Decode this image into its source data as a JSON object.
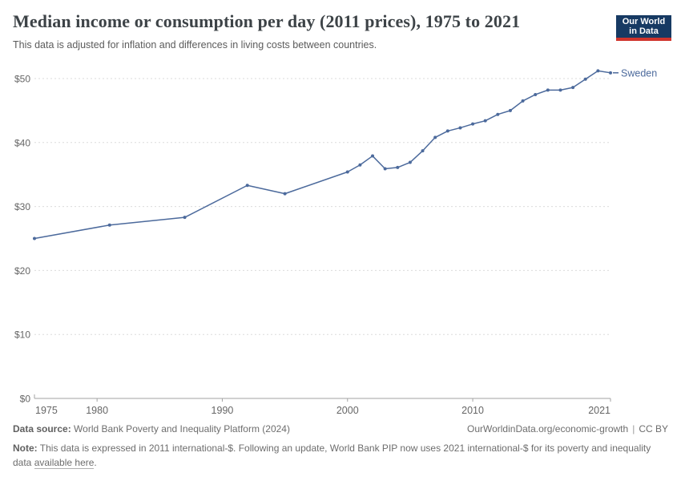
{
  "header": {
    "title": "Median income or consumption per day (2011 prices), 1975 to 2021",
    "subtitle": "This data is adjusted for inflation and differences in living costs between countries.",
    "logo": {
      "line1": "Our World",
      "line2": "in Data"
    }
  },
  "chart_data": {
    "type": "line",
    "title": "Median income or consumption per day (2011 prices), 1975 to 2021",
    "xlabel": "",
    "ylabel": "",
    "x_range": [
      1975,
      2021
    ],
    "y_range": [
      0,
      50
    ],
    "x_ticks": [
      1975,
      1980,
      1990,
      2000,
      2010,
      2021
    ],
    "y_ticks": [
      0,
      10,
      20,
      30,
      40,
      50
    ],
    "y_tick_prefix": "$",
    "grid": true,
    "legend_position": "end-of-line",
    "series": [
      {
        "name": "Sweden",
        "color": "#4C6A9C",
        "points": [
          [
            1975,
            25.0
          ],
          [
            1981,
            27.1
          ],
          [
            1987,
            28.3
          ],
          [
            1992,
            33.3
          ],
          [
            1995,
            32.0
          ],
          [
            2000,
            35.4
          ],
          [
            2001,
            36.5
          ],
          [
            2002,
            37.9
          ],
          [
            2003,
            35.9
          ],
          [
            2004,
            36.1
          ],
          [
            2005,
            36.9
          ],
          [
            2006,
            38.7
          ],
          [
            2007,
            40.8
          ],
          [
            2008,
            41.8
          ],
          [
            2009,
            42.3
          ],
          [
            2010,
            42.9
          ],
          [
            2011,
            43.4
          ],
          [
            2012,
            44.4
          ],
          [
            2013,
            45.0
          ],
          [
            2014,
            46.5
          ],
          [
            2015,
            47.5
          ],
          [
            2016,
            48.2
          ],
          [
            2017,
            48.2
          ],
          [
            2018,
            48.6
          ],
          [
            2019,
            49.9
          ],
          [
            2020,
            51.2
          ],
          [
            2021,
            50.9
          ]
        ]
      }
    ]
  },
  "footer": {
    "datasource_label": "Data source:",
    "datasource_value": "World Bank Poverty and Inequality Platform (2024)",
    "attribution_link": "OurWorldinData.org/economic-growth",
    "attribution_divider": "|",
    "attribution_license": "CC BY",
    "note_label": "Note:",
    "note_text": "This data is expressed in 2011 international-$. Following an update, World Bank PIP now uses 2021 international-$ for its poverty and inequality data",
    "note_link": "available here",
    "note_end": "."
  },
  "colors": {
    "series_line": "#4C6A9C",
    "logo_background": "#173a63",
    "logo_accent": "#d0342c",
    "gridline": "#dbdbdb",
    "axis": "#a3a3a3",
    "tick_label": "#666666"
  }
}
